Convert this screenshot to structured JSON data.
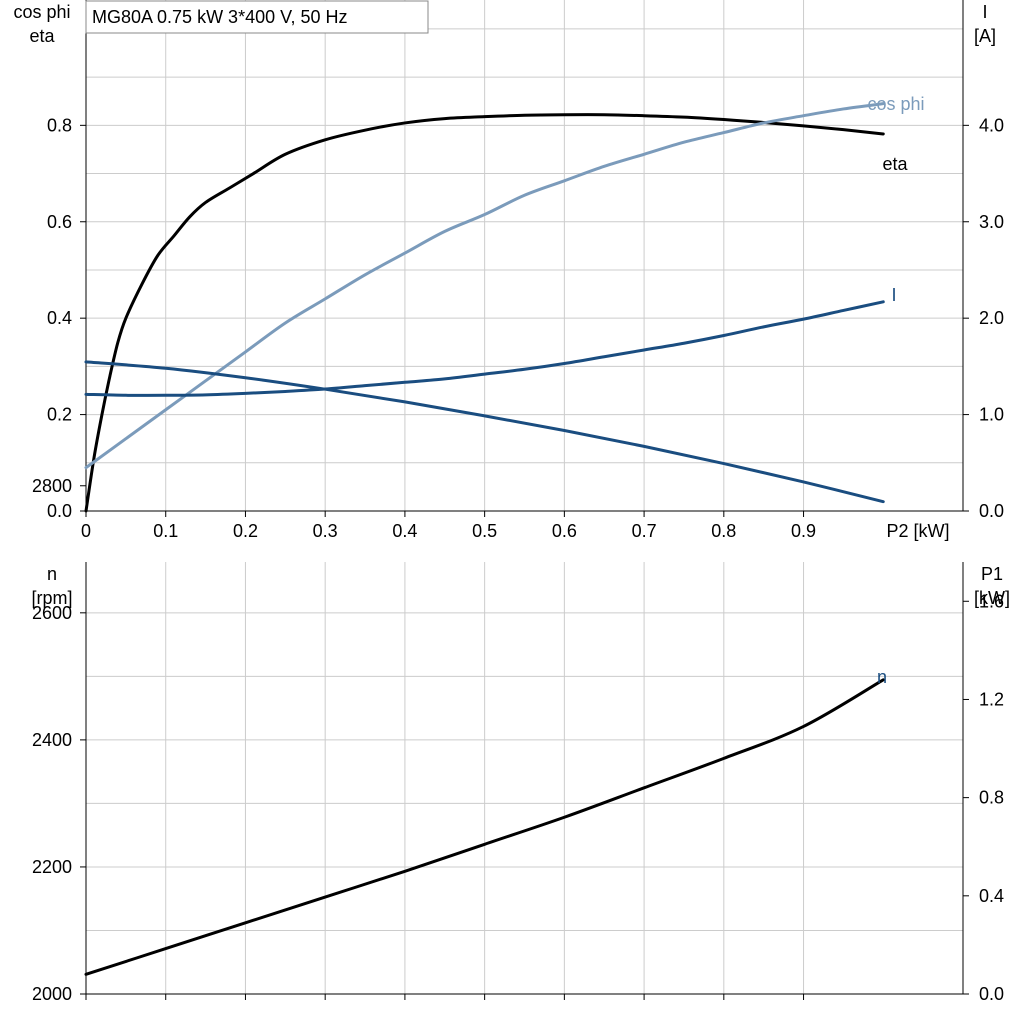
{
  "title": "MG80A   0.75 kW   3*400 V, 50 Hz",
  "colors": {
    "eta": "#000000",
    "cos_phi": "#7b9bbb",
    "I": "#1a4d80",
    "n": "#1a4d80",
    "P1": "#000000",
    "grid": "#cccccc"
  },
  "chart_data": [
    {
      "type": "line",
      "name": "efficiency-chart",
      "xlabel": "P2 [kW]",
      "ylabel_left": [
        "cos phi",
        "eta"
      ],
      "ylabel_right": [
        "I",
        "[A]"
      ],
      "xlim": [
        0,
        1.1
      ],
      "ylim_left": [
        0,
        1.06
      ],
      "ylim_right": [
        0,
        5.3
      ],
      "xticks": [
        0,
        0.1,
        0.2,
        0.3,
        0.4,
        0.5,
        0.6,
        0.7,
        0.8,
        0.9
      ],
      "xtick_labels": [
        "0",
        "0.1",
        "0.2",
        "0.3",
        "0.4",
        "0.5",
        "0.6",
        "0.7",
        "0.8",
        "0.9"
      ],
      "yticks_left": [
        0,
        0.2,
        0.4,
        0.6,
        0.8
      ],
      "ytick_labels_left": [
        "0.0",
        "0.2",
        "0.4",
        "0.6",
        "0.8"
      ],
      "yticks_right": [
        0,
        1,
        2,
        3,
        4
      ],
      "ytick_labels_right": [
        "0.0",
        "1.0",
        "2.0",
        "3.0",
        "4.0"
      ],
      "grid": true,
      "series": [
        {
          "name": "eta",
          "axis": "left",
          "color": "#000000",
          "x": [
            0,
            0.01,
            0.02,
            0.03,
            0.04,
            0.05,
            0.07,
            0.09,
            0.11,
            0.13,
            0.15,
            0.18,
            0.21,
            0.25,
            0.3,
            0.35,
            0.4,
            0.45,
            0.5,
            0.55,
            0.6,
            0.65,
            0.7,
            0.75,
            0.8,
            0.85,
            0.9,
            0.95,
            1.0
          ],
          "y": [
            0,
            0.11,
            0.2,
            0.28,
            0.35,
            0.4,
            0.47,
            0.53,
            0.57,
            0.61,
            0.64,
            0.67,
            0.7,
            0.74,
            0.77,
            0.79,
            0.805,
            0.814,
            0.818,
            0.821,
            0.822,
            0.822,
            0.82,
            0.817,
            0.812,
            0.806,
            0.799,
            0.791,
            0.782
          ]
        },
        {
          "name": "cos phi",
          "axis": "left",
          "color": "#7b9bbb",
          "x": [
            0,
            0.05,
            0.1,
            0.15,
            0.2,
            0.25,
            0.3,
            0.35,
            0.4,
            0.45,
            0.5,
            0.55,
            0.6,
            0.65,
            0.7,
            0.75,
            0.8,
            0.85,
            0.9,
            0.95,
            1.0
          ],
          "y": [
            0.09,
            0.15,
            0.21,
            0.27,
            0.33,
            0.39,
            0.44,
            0.49,
            0.535,
            0.58,
            0.615,
            0.655,
            0.685,
            0.715,
            0.74,
            0.765,
            0.785,
            0.805,
            0.82,
            0.834,
            0.845
          ]
        },
        {
          "name": "I",
          "axis": "right",
          "color": "#1a4d80",
          "x": [
            0,
            0.05,
            0.1,
            0.15,
            0.2,
            0.25,
            0.3,
            0.35,
            0.4,
            0.45,
            0.5,
            0.55,
            0.6,
            0.65,
            0.7,
            0.75,
            0.8,
            0.85,
            0.9,
            0.95,
            1.0
          ],
          "y": [
            1.21,
            1.2,
            1.2,
            1.205,
            1.22,
            1.24,
            1.265,
            1.3,
            1.335,
            1.37,
            1.42,
            1.47,
            1.53,
            1.6,
            1.67,
            1.74,
            1.82,
            1.91,
            1.99,
            2.08,
            2.17
          ]
        }
      ],
      "annotations": [
        "cos phi",
        "eta",
        "I"
      ]
    },
    {
      "type": "line",
      "name": "speed-power-chart",
      "ylabel_left": [
        "n",
        "[rpm]"
      ],
      "ylabel_right": [
        "P1",
        "[kW]"
      ],
      "xlim": [
        0,
        1.1
      ],
      "ylim_left": [
        2000,
        2680
      ],
      "ylim_right": [
        0,
        1.76
      ],
      "xticks": [
        0,
        0.1,
        0.2,
        0.3,
        0.4,
        0.5,
        0.6,
        0.7,
        0.8,
        0.9
      ],
      "yticks_left": [
        2000,
        2200,
        2400,
        2600,
        2800
      ],
      "ytick_labels_left": [
        "2000",
        "2200",
        "2400",
        "2600",
        "2800"
      ],
      "yticks_right": [
        0,
        0.4,
        0.8,
        1.2,
        1.6
      ],
      "ytick_labels_right": [
        "0.0",
        "0.4",
        "0.8",
        "1.2",
        "1.6"
      ],
      "grid": true,
      "series": [
        {
          "name": "n",
          "axis": "left",
          "color": "#1a4d80",
          "x": [
            0,
            0.1,
            0.2,
            0.3,
            0.4,
            0.5,
            0.6,
            0.7,
            0.8,
            0.9,
            1.0
          ],
          "y": [
            2995,
            2985,
            2970,
            2952,
            2932,
            2910,
            2887,
            2862,
            2835,
            2806,
            2775
          ]
        },
        {
          "name": "P1",
          "axis": "right",
          "color": "#000000",
          "x": [
            0,
            0.1,
            0.2,
            0.3,
            0.4,
            0.5,
            0.6,
            0.7,
            0.8,
            0.9,
            1.0
          ],
          "y": [
            0.08,
            0.185,
            0.29,
            0.395,
            0.5,
            0.61,
            0.72,
            0.84,
            0.96,
            1.09,
            1.28
          ]
        }
      ],
      "annotations": [
        "n"
      ]
    }
  ]
}
